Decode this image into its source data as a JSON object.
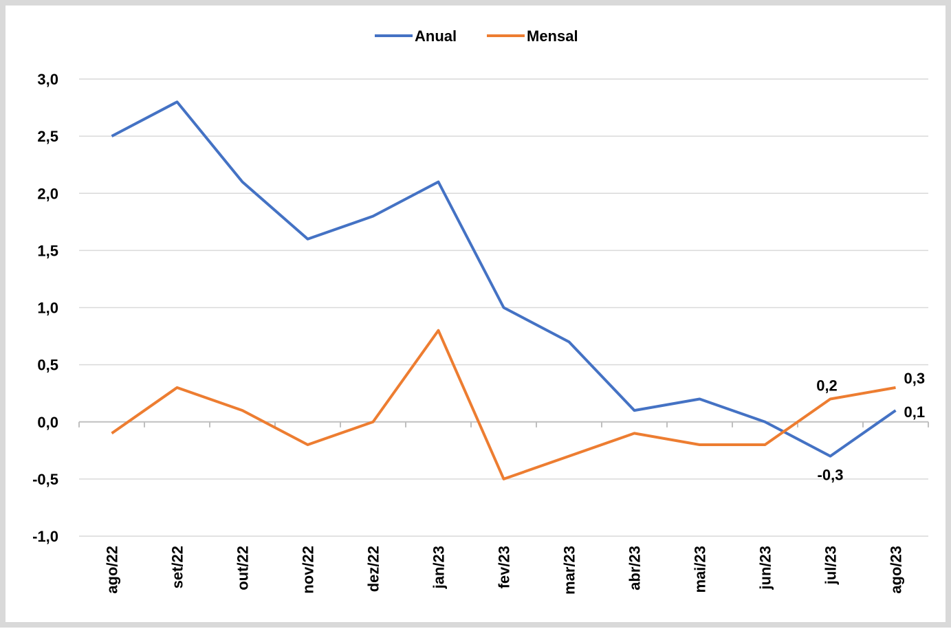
{
  "chart_data": {
    "type": "line",
    "categories": [
      "ago/22",
      "set/22",
      "out/22",
      "nov/22",
      "dez/22",
      "jan/23",
      "fev/23",
      "mar/23",
      "abr/23",
      "mai/23",
      "jun/23",
      "jul/23",
      "ago/23"
    ],
    "series": [
      {
        "name": "Anual",
        "color": "#4472c4",
        "values": [
          2.5,
          2.8,
          2.1,
          1.6,
          1.8,
          2.1,
          1.0,
          0.7,
          0.1,
          0.2,
          0.0,
          -0.3,
          0.1
        ],
        "value_labels": [
          null,
          null,
          null,
          null,
          null,
          null,
          null,
          null,
          null,
          null,
          null,
          "-0,3",
          "0,1"
        ]
      },
      {
        "name": "Mensal",
        "color": "#ed7d31",
        "values": [
          -0.1,
          0.3,
          0.1,
          -0.2,
          0.0,
          0.8,
          -0.5,
          -0.3,
          -0.1,
          -0.2,
          -0.2,
          0.2,
          0.3
        ],
        "value_labels": [
          null,
          null,
          null,
          null,
          null,
          null,
          null,
          null,
          null,
          null,
          null,
          "0,2",
          "0,3"
        ]
      }
    ],
    "ylim": [
      -1,
      3
    ],
    "yticks": [
      {
        "value": -1,
        "label": "-1,0"
      },
      {
        "value": -0.5,
        "label": "-0,5"
      },
      {
        "value": 0,
        "label": "0,0"
      },
      {
        "value": 0.5,
        "label": "0,5"
      },
      {
        "value": 1,
        "label": "1,0"
      },
      {
        "value": 1.5,
        "label": "1,5"
      },
      {
        "value": 2,
        "label": "2,0"
      },
      {
        "value": 2.5,
        "label": "2,5"
      },
      {
        "value": 3,
        "label": "3,0"
      }
    ],
    "grid": true,
    "legend": "top"
  }
}
